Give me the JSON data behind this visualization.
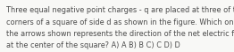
{
  "lines": [
    "Three equal negative point charges - q are placed at three of the",
    "corners of a square of side d as shown in the figure. Which one of",
    "the arrows shown represents the direction of the net electric field",
    "at the center of the square? A) A B) B C) C D) D"
  ],
  "font_size": 5.85,
  "text_color": "#4a4a4a",
  "bg_color": "#f8f8f6",
  "fig_width": 2.62,
  "fig_height": 0.59,
  "dpi": 100
}
